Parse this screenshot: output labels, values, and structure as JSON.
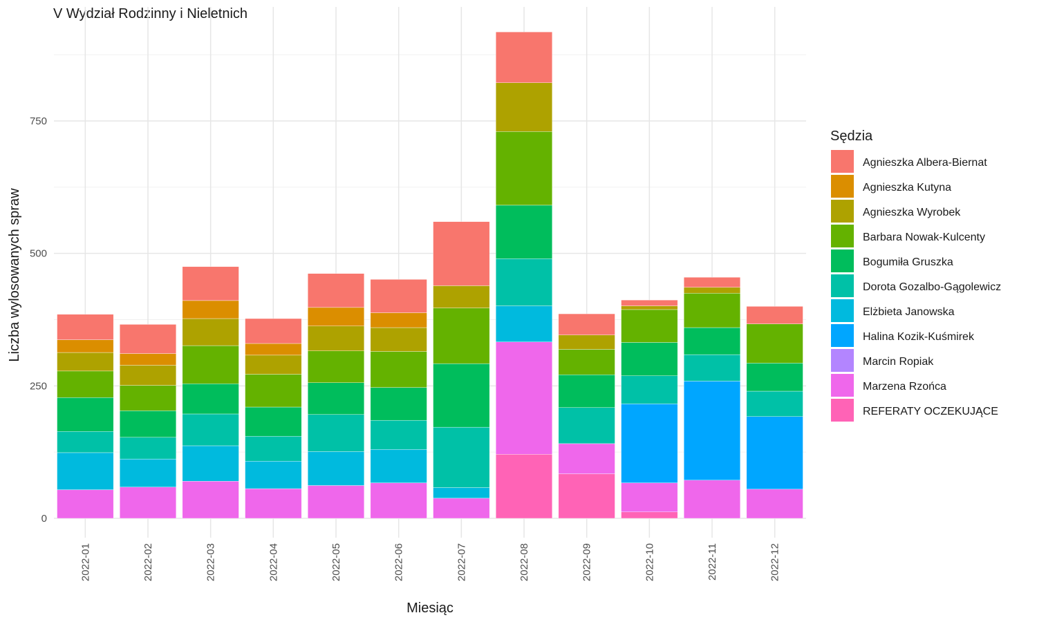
{
  "chart_data": {
    "type": "bar",
    "stacked": true,
    "title": "V Wydział Rodzinny i Nieletnich",
    "xlabel": "Miesiąc",
    "ylabel": "Liczba wylosowanych spraw",
    "ylim": [
      0,
      960
    ],
    "yticks": [
      0,
      250,
      500,
      750
    ],
    "grid": true,
    "legend_title": "Sędzia",
    "legend_position": "right",
    "categories": [
      "2022-01",
      "2022-02",
      "2022-03",
      "2022-04",
      "2022-05",
      "2022-06",
      "2022-07",
      "2022-08",
      "2022-09",
      "2022-10",
      "2022-11",
      "2022-12"
    ],
    "series": [
      {
        "name": "Agnieszka Albera-Biernat",
        "color": "#F8766D",
        "values": [
          48,
          55,
          64,
          47,
          64,
          63,
          121,
          96,
          40,
          11,
          19,
          33
        ]
      },
      {
        "name": "Agnieszka Kutyna",
        "color": "#DB8E00",
        "values": [
          24,
          22,
          34,
          22,
          35,
          28,
          0,
          0,
          0,
          0,
          0,
          0
        ]
      },
      {
        "name": "Agnieszka Wyrobek",
        "color": "#AEA200",
        "values": [
          35,
          38,
          51,
          36,
          47,
          45,
          42,
          92,
          27,
          7,
          11,
          0
        ]
      },
      {
        "name": "Barbara Nowak-Kulcenty",
        "color": "#64B200",
        "values": [
          50,
          48,
          72,
          62,
          60,
          68,
          105,
          139,
          48,
          62,
          65,
          74
        ]
      },
      {
        "name": "Bogumiła Gruszka",
        "color": "#00BD5C",
        "values": [
          64,
          50,
          57,
          55,
          60,
          62,
          120,
          101,
          62,
          63,
          51,
          53
        ]
      },
      {
        "name": "Dorota Gozalbo-Gągolewicz",
        "color": "#00C1A7",
        "values": [
          40,
          41,
          60,
          47,
          70,
          55,
          114,
          89,
          68,
          53,
          50,
          48
        ]
      },
      {
        "name": "Elżbieta Janowska",
        "color": "#00BADE",
        "values": [
          70,
          53,
          67,
          52,
          64,
          63,
          20,
          68,
          0,
          0,
          0,
          0
        ]
      },
      {
        "name": "Halina Kozik-Kuśmirek",
        "color": "#00A6FF",
        "values": [
          0,
          0,
          0,
          0,
          0,
          0,
          0,
          0,
          0,
          149,
          187,
          137
        ]
      },
      {
        "name": "Marcin Ropiak",
        "color": "#B385FF",
        "values": [
          0,
          0,
          0,
          0,
          0,
          0,
          0,
          0,
          0,
          0,
          0,
          0
        ]
      },
      {
        "name": "Marzena Rzońca",
        "color": "#EF67EB",
        "values": [
          54,
          59,
          70,
          56,
          62,
          67,
          38,
          212,
          57,
          55,
          72,
          55
        ]
      },
      {
        "name": "REFERATY OCZEKUJĄCE",
        "color": "#FF63B6",
        "values": [
          0,
          0,
          0,
          0,
          0,
          0,
          0,
          121,
          84,
          12,
          0,
          0
        ]
      }
    ]
  }
}
